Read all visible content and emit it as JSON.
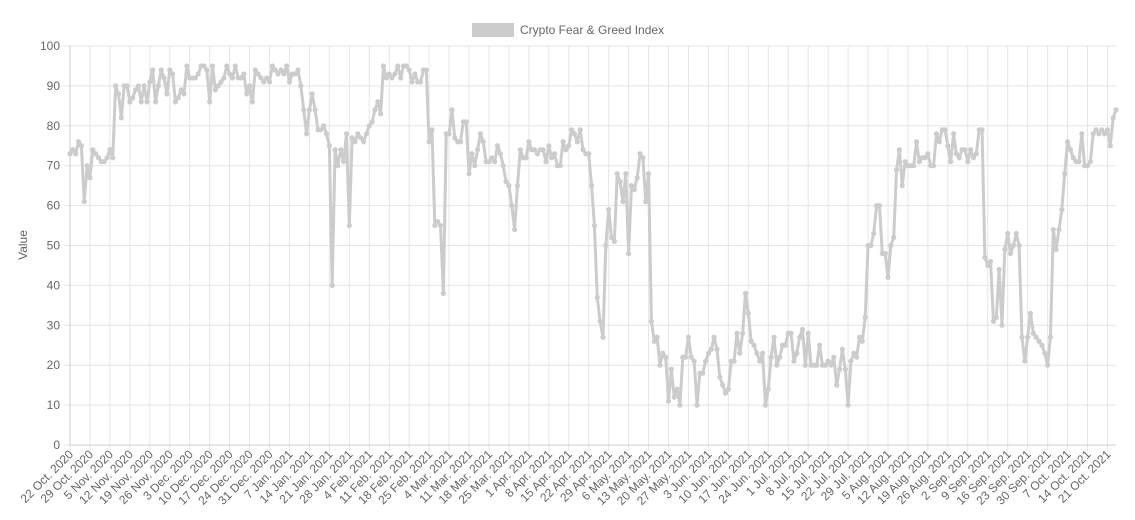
{
  "chart_data": {
    "type": "line",
    "y_label": "Value",
    "categories": [
      "22 Oct. 2020",
      null,
      null,
      null,
      null,
      null,
      null,
      "29 Oct. 2020",
      null,
      null,
      null,
      null,
      null,
      null,
      "5 Nov. 2020",
      null,
      null,
      null,
      null,
      null,
      null,
      "12 Nov. 2020",
      null,
      null,
      null,
      null,
      null,
      null,
      "19 Nov. 2020",
      null,
      null,
      null,
      null,
      null,
      null,
      "26 Nov. 2020",
      null,
      null,
      null,
      null,
      null,
      null,
      "3 Dec. 2020",
      null,
      null,
      null,
      null,
      null,
      null,
      "10 Dec. 2020",
      null,
      null,
      null,
      null,
      null,
      null,
      "17 Dec. 2020",
      null,
      null,
      null,
      null,
      null,
      null,
      "24 Dec. 2020",
      null,
      null,
      null,
      null,
      null,
      null,
      "31 Dec. 2020",
      null,
      null,
      null,
      null,
      null,
      null,
      "7 Jan. 2021",
      null,
      null,
      null,
      null,
      null,
      null,
      "14 Jan. 2021",
      null,
      null,
      null,
      null,
      null,
      null,
      "21 Jan. 2021",
      null,
      null,
      null,
      null,
      null,
      null,
      "28 Jan. 2021",
      null,
      null,
      null,
      null,
      null,
      null,
      "4 Feb. 2021",
      null,
      null,
      null,
      null,
      null,
      null,
      "11 Feb. 2021",
      null,
      null,
      null,
      null,
      null,
      null,
      "18 Feb. 2021",
      null,
      null,
      null,
      null,
      null,
      null,
      "25 Feb. 2021",
      null,
      null,
      null,
      null,
      null,
      null,
      "4 Mar. 2021",
      null,
      null,
      null,
      null,
      null,
      null,
      "11 Mar. 2021",
      null,
      null,
      null,
      null,
      null,
      null,
      "18 Mar. 2021",
      null,
      null,
      null,
      null,
      null,
      null,
      "25 Mar. 2021",
      null,
      null,
      null,
      null,
      null,
      null,
      "1 Apr. 2021",
      null,
      null,
      null,
      null,
      null,
      null,
      "8 Apr. 2021",
      null,
      null,
      null,
      null,
      null,
      null,
      "15 Apr. 2021",
      null,
      null,
      null,
      null,
      null,
      null,
      "22 Apr. 2021",
      null,
      null,
      null,
      null,
      null,
      null,
      "29 Apr. 2021",
      null,
      null,
      null,
      null,
      null,
      null,
      "6 May. 2021",
      null,
      null,
      null,
      null,
      null,
      null,
      "13 May. 2021",
      null,
      null,
      null,
      null,
      null,
      null,
      "20 May. 2021",
      null,
      null,
      null,
      null,
      null,
      null,
      "27 May. 2021",
      null,
      null,
      null,
      null,
      null,
      null,
      "3 Jun. 2021",
      null,
      null,
      null,
      null,
      null,
      null,
      "10 Jun. 2021",
      null,
      null,
      null,
      null,
      null,
      null,
      "17 Jun. 2021",
      null,
      null,
      null,
      null,
      null,
      null,
      "24 Jun. 2021",
      null,
      null,
      null,
      null,
      null,
      null,
      "1 Jul. 2021",
      null,
      null,
      null,
      null,
      null,
      null,
      "8 Jul. 2021",
      null,
      null,
      null,
      null,
      null,
      null,
      "15 Jul. 2021",
      null,
      null,
      null,
      null,
      null,
      null,
      "22 Jul. 2021",
      null,
      null,
      null,
      null,
      null,
      null,
      "29 Jul. 2021",
      null,
      null,
      null,
      null,
      null,
      null,
      "5 Aug. 2021",
      null,
      null,
      null,
      null,
      null,
      null,
      "12 Aug. 2021",
      null,
      null,
      null,
      null,
      null,
      null,
      "19 Aug. 2021",
      null,
      null,
      null,
      null,
      null,
      null,
      "26 Aug. 2021",
      null,
      null,
      null,
      null,
      null,
      null,
      "2 Sep. 2021",
      null,
      null,
      null,
      null,
      null,
      null,
      "9 Sep. 2021",
      null,
      null,
      null,
      null,
      null,
      null,
      "16 Sep. 2021",
      null,
      null,
      null,
      null,
      null,
      null,
      "23 Sep. 2021",
      null,
      null,
      null,
      null,
      null,
      null,
      "30 Sep. 2021",
      null,
      null,
      null,
      null,
      null,
      null,
      "7 Oct. 2021",
      null,
      null,
      null,
      null,
      null,
      null,
      "14 Oct. 2021",
      null,
      null,
      null,
      null,
      null,
      null,
      "21 Oct. 2021",
      null,
      null,
      null
    ],
    "series": [
      {
        "name": "Crypto Fear & Greed Index",
        "color": "#cccccc",
        "values": [
          73,
          74,
          73,
          76,
          75,
          61,
          70,
          67,
          74,
          73,
          72,
          71,
          71,
          72,
          74,
          72,
          90,
          88,
          82,
          90,
          90,
          86,
          87,
          89,
          90,
          86,
          90,
          86,
          91,
          94,
          86,
          90,
          94,
          92,
          88,
          94,
          93,
          86,
          87,
          89,
          88,
          95,
          92,
          92,
          92,
          93,
          95,
          95,
          94,
          86,
          95,
          89,
          90,
          91,
          92,
          95,
          93,
          92,
          95,
          92,
          92,
          93,
          88,
          90,
          86,
          94,
          93,
          92,
          91,
          92,
          91,
          95,
          94,
          93,
          94,
          93,
          95,
          91,
          93,
          93,
          94,
          90,
          84,
          78,
          84,
          88,
          84,
          79,
          79,
          80,
          78,
          75,
          40,
          74,
          70,
          74,
          71,
          78,
          55,
          77,
          76,
          78,
          77,
          76,
          78,
          80,
          81,
          84,
          86,
          83,
          95,
          92,
          93,
          92,
          93,
          95,
          92,
          95,
          95,
          94,
          91,
          93,
          91,
          91,
          94,
          94,
          76,
          79,
          55,
          56,
          55,
          38,
          78,
          78,
          84,
          77,
          76,
          76,
          81,
          81,
          68,
          73,
          70,
          74,
          78,
          76,
          71,
          71,
          72,
          71,
          75,
          73,
          70,
          66,
          65,
          60,
          54,
          65,
          74,
          72,
          72,
          76,
          74,
          74,
          73,
          74,
          74,
          71,
          75,
          72,
          73,
          70,
          70,
          76,
          74,
          75,
          79,
          78,
          76,
          79,
          74,
          73,
          73,
          65,
          55,
          37,
          31,
          27,
          50,
          59,
          52,
          51,
          68,
          66,
          61,
          68,
          48,
          65,
          64,
          67,
          73,
          72,
          61,
          68,
          31,
          26,
          27,
          20,
          23,
          22,
          11,
          19,
          12,
          14,
          10,
          22,
          22,
          27,
          22,
          21,
          10,
          18,
          18,
          21,
          23,
          24,
          27,
          24,
          17,
          15,
          13,
          14,
          21,
          21,
          28,
          23,
          28,
          38,
          33,
          26,
          25,
          23,
          21,
          23,
          10,
          14,
          22,
          27,
          20,
          22,
          25,
          25,
          28,
          28,
          21,
          23,
          27,
          29,
          20,
          28,
          20,
          20,
          20,
          25,
          20,
          20,
          21,
          20,
          22,
          15,
          19,
          24,
          19,
          10,
          21,
          23,
          22,
          27,
          26,
          32,
          50,
          50,
          53,
          60,
          60,
          48,
          48,
          42,
          50,
          52,
          69,
          74,
          65,
          71,
          70,
          70,
          70,
          76,
          71,
          72,
          72,
          73,
          70,
          70,
          78,
          76,
          79,
          79,
          75,
          71,
          78,
          73,
          72,
          74,
          74,
          71,
          74,
          72,
          73,
          79,
          79,
          47,
          45,
          46,
          31,
          32,
          44,
          30,
          49,
          53,
          48,
          50,
          53,
          50,
          27,
          21,
          27,
          33,
          28,
          27,
          26,
          25,
          23,
          20,
          27,
          54,
          49,
          54,
          59,
          68,
          76,
          74,
          72,
          71,
          71,
          78,
          70,
          70,
          71,
          78,
          79,
          78,
          79,
          78,
          79,
          75,
          82,
          84
        ]
      }
    ],
    "ylim": [
      0,
      100
    ],
    "yticks": [
      0,
      10,
      20,
      30,
      40,
      50,
      60,
      70,
      80,
      90,
      100
    ],
    "grid": true,
    "legend": "top"
  }
}
